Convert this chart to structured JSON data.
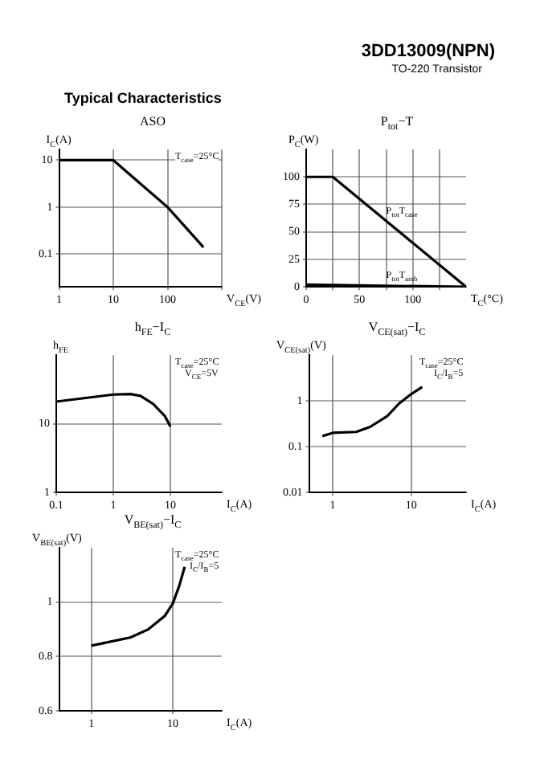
{
  "chart_data": [
    {
      "type": "other",
      "title": "3DD13009(NPN)",
      "subtitle": "TO-220 Transistor",
      "annotations": [
        "Typical Characteristics"
      ]
    },
    {
      "type": "line",
      "title": "ASO",
      "xlabel": "V$_{CE}$(V)",
      "ylabel": "I$_{C}$(A)",
      "log": "xy",
      "xlim": [
        1,
        1000
      ],
      "ylim": [
        0.02,
        17
      ],
      "xticks": [
        1,
        10,
        100,
        {
          "value": 1000,
          "label": null
        }
      ],
      "yticks": [
        0.1,
        1,
        10
      ],
      "grid": true,
      "annotations": [
        "T$_{case}$=25°C"
      ],
      "series": [
        {
          "color": "#000000",
          "x": [
            1,
            10,
            100,
            460
          ],
          "values": [
            10,
            10,
            1,
            0.14
          ]
        }
      ]
    },
    {
      "type": "line",
      "title": "P$_{tot}$−T",
      "xlabel": "T$_{C}$(°C)",
      "ylabel": "P$_{C}$(W)",
      "xlim": [
        0,
        150
      ],
      "ylim": [
        0,
        125
      ],
      "xticks": [
        0,
        {
          "value": 25,
          "label": null
        },
        50,
        {
          "value": 75,
          "label": null
        },
        100,
        {
          "value": 125,
          "label": null
        }
      ],
      "yticks": [
        0,
        25,
        50,
        75,
        100
      ],
      "grid": true,
      "annotations": [
        {
          "text": "P$_{tot}$T$_{case}$",
          "x": 75,
          "y": 60
        },
        {
          "text": "P$_{tot}$T$_{amb}$",
          "x": 75,
          "y": 1
        }
      ],
      "series": [
        {
          "color": "#000000",
          "x": [
            0,
            25,
            150
          ],
          "values": [
            100,
            100,
            0
          ]
        },
        {
          "color": "#000000",
          "x": [
            0,
            150
          ],
          "values": [
            2,
            0
          ]
        }
      ]
    },
    {
      "type": "line",
      "title": "h$_{FE}$−I$_{C}$",
      "xlabel": "I$_{C}$(A)",
      "ylabel": "h$_{FE}$",
      "log": "xy",
      "xlim": [
        0.1,
        80
      ],
      "ylim": [
        1,
        100
      ],
      "xticks": [
        0.1,
        1,
        10
      ],
      "yticks": [
        1,
        10
      ],
      "grid": true,
      "annotations": [
        "T$_{case}$=25°C",
        "V$_{CE}$=5V"
      ],
      "series": [
        {
          "color": "#000000",
          "x": [
            0.1,
            1,
            2,
            3,
            5,
            8,
            10
          ],
          "values": [
            21,
            26.6,
            27,
            25.5,
            19.4,
            13,
            9.1
          ]
        }
      ]
    },
    {
      "type": "line",
      "title": "V$_{CE(sat)}$−I$_{C}$",
      "xlabel": "I$_{C}$(A)",
      "ylabel": "V$_{CE(sat)}$(V)",
      "log": "xy",
      "xlim": [
        0.5,
        50
      ],
      "ylim": [
        0.01,
        10
      ],
      "xticks": [
        1,
        10
      ],
      "yticks": [
        0.01,
        0.1,
        1
      ],
      "grid": true,
      "annotations": [
        "T$_{case}$=25°C",
        "I$_{C}$/I$_{B}$=5"
      ],
      "series": [
        {
          "color": "#000000",
          "x": [
            0.74,
            1,
            2,
            3,
            5,
            7,
            10,
            13.8
          ],
          "values": [
            0.17,
            0.2,
            0.21,
            0.27,
            0.47,
            0.87,
            1.4,
            2
          ]
        }
      ]
    },
    {
      "type": "line",
      "title": "V$_{BE(sat)}$−I$_{C}$",
      "xlabel": "I$_{C}$(A)",
      "ylabel": "V$_{BE(sat)}$(V)",
      "log": "x",
      "xlim": [
        0.4,
        40
      ],
      "ylim": [
        0.6,
        1.2
      ],
      "xticks": [
        1,
        10
      ],
      "yticks": [
        0.6,
        0.8,
        1.0
      ],
      "grid": true,
      "annotations": [
        "T$_{case}$=25°C",
        "I$_{C}$/I$_{B}$=5"
      ],
      "series": [
        {
          "color": "#000000",
          "x": [
            1,
            3,
            5,
            8,
            10,
            12,
            14
          ],
          "values": [
            0.84,
            0.87,
            0.9,
            0.95,
            0.995,
            1.06,
            1.13
          ]
        }
      ]
    }
  ]
}
